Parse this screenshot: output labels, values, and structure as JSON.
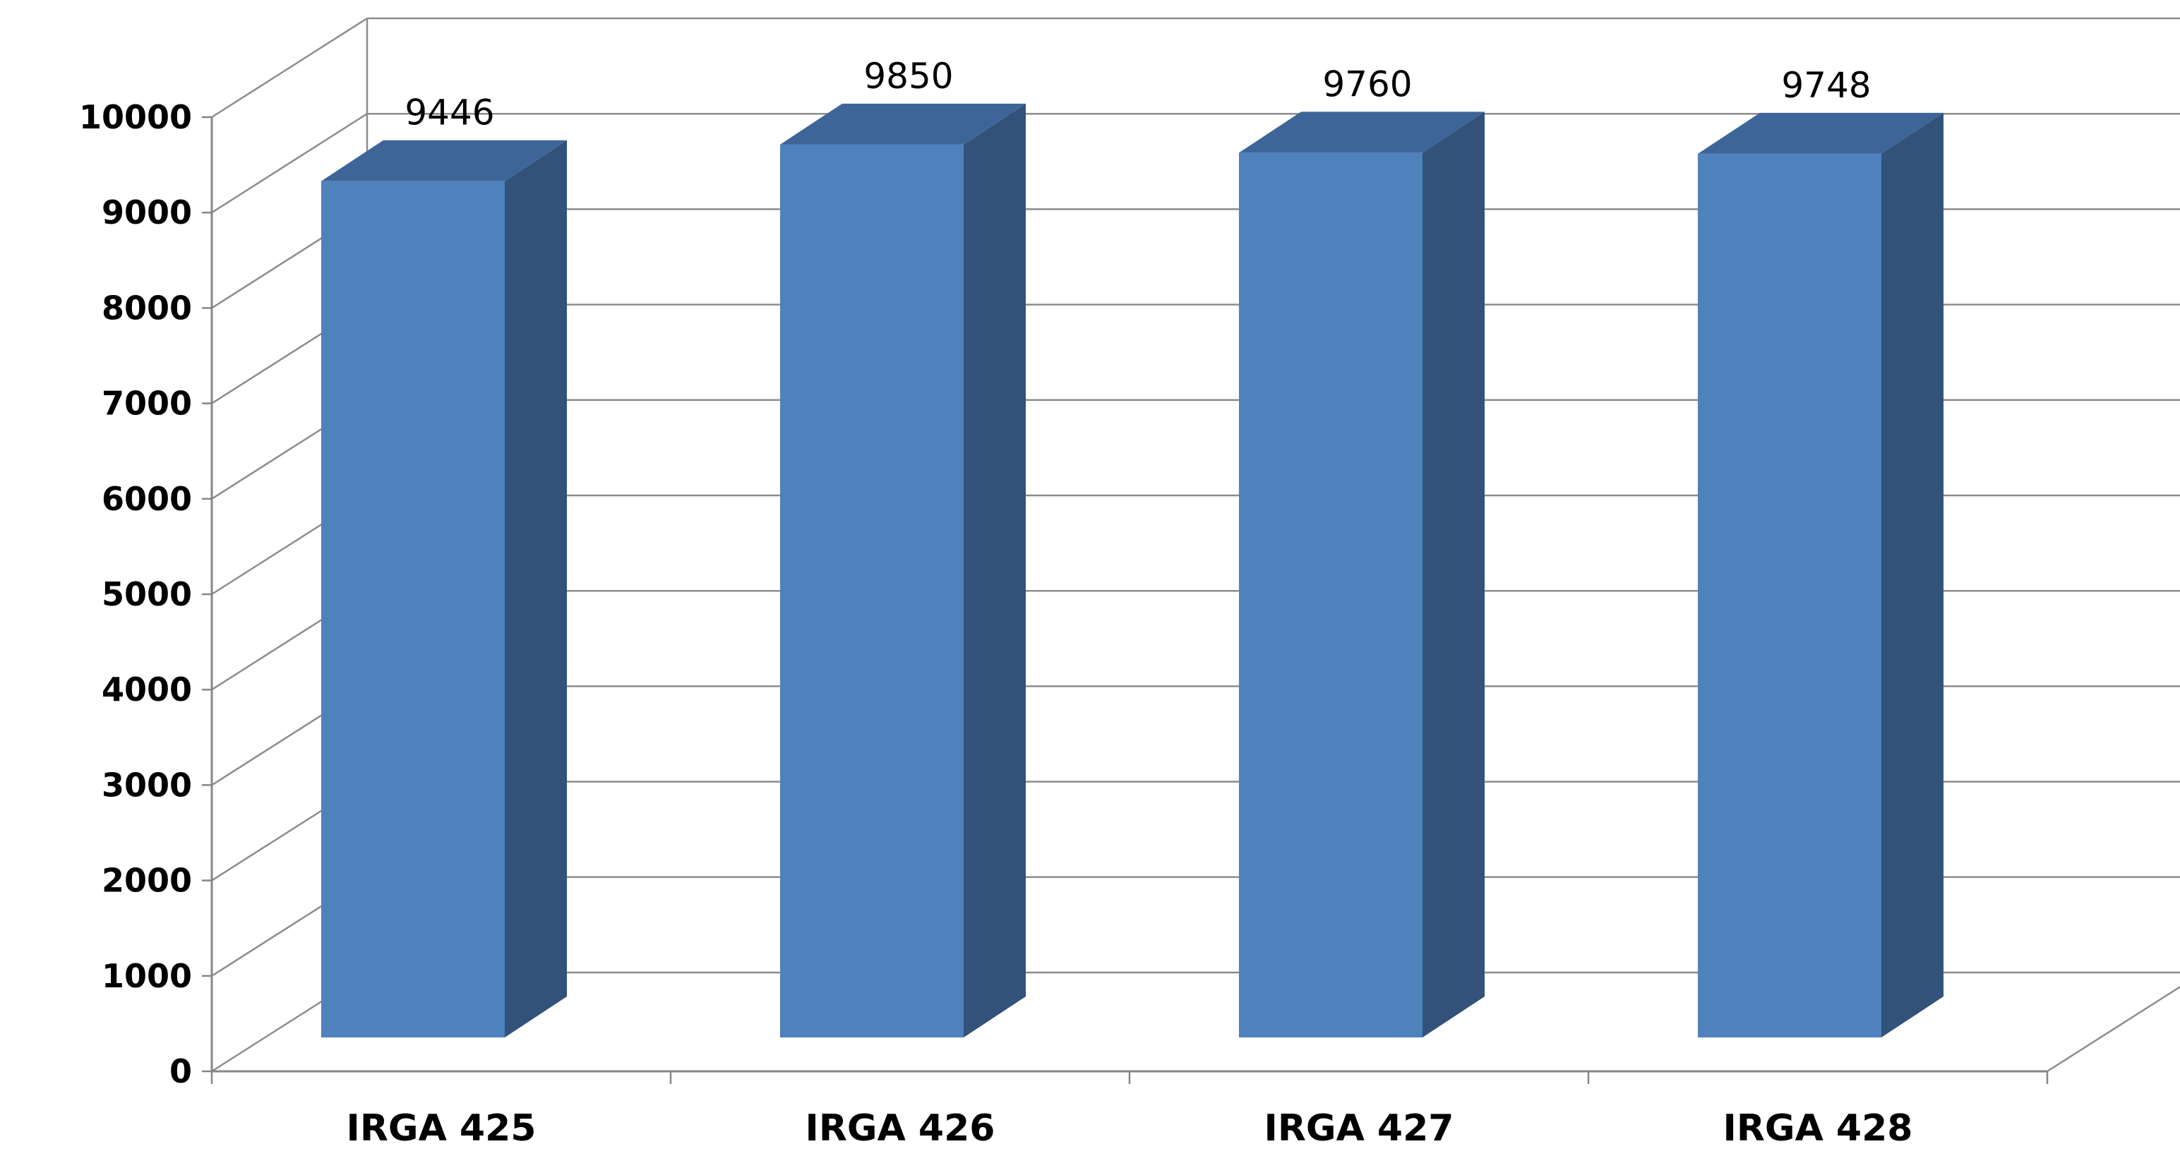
{
  "chart_data": {
    "type": "bar",
    "style": "3d-column",
    "categories": [
      "IRGA 425",
      "IRGA 426",
      "IRGA 427",
      "IRGA 428"
    ],
    "values": [
      9446,
      9850,
      9760,
      9748
    ],
    "data_labels": [
      "9446",
      "9850",
      "9760",
      "9748"
    ],
    "y_ticks": [
      "0",
      "1000",
      "2000",
      "3000",
      "4000",
      "5000",
      "6000",
      "7000",
      "8000",
      "9000",
      "10000"
    ],
    "ylim": [
      0,
      10000
    ],
    "y_step": 1000,
    "grid": true,
    "legend": "none",
    "colors": {
      "bar_front": "#4F81BD",
      "bar_side": "#32527A",
      "bar_top": "#3E6598",
      "grid": "#8C8C8C",
      "axis": "#868686"
    }
  }
}
